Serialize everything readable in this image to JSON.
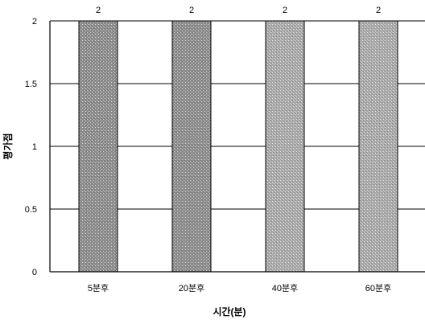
{
  "chart_data": {
    "type": "bar",
    "xlabel": "시간(분)",
    "ylabel": "평가점",
    "categories": [
      "5분후",
      "20분후",
      "40분후",
      "60분후"
    ],
    "values": [
      2,
      2,
      2,
      2
    ],
    "data_labels": [
      "2",
      "2",
      "2",
      "2"
    ],
    "ylim": [
      0,
      2
    ],
    "yticks": [
      0,
      0.5,
      1,
      1.5,
      2
    ],
    "ytick_labels": [
      "0",
      "0.5",
      "1",
      "1.5",
      "2"
    ],
    "grid": true,
    "legend": "none",
    "colors": {
      "bar_fill_dark": "#9a9a9a",
      "bar_fill_light": "#b4b4b4",
      "bar_stroke": "#000000",
      "gridline": "#000000"
    }
  }
}
